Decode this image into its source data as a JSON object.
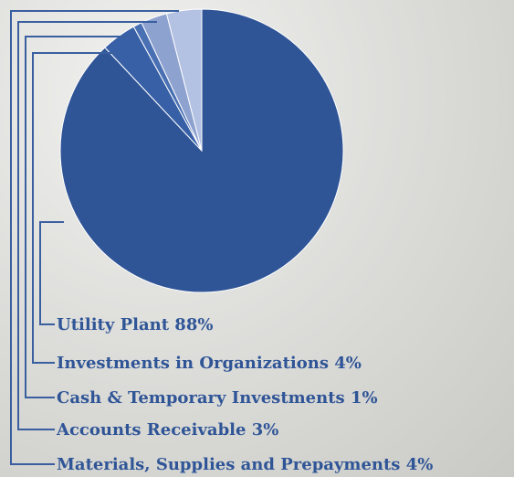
{
  "chart_data": {
    "type": "pie",
    "categories": [
      "Utility Plant",
      "Investments in Organizations",
      "Cash & Temporary Investments",
      "Accounts Receivable",
      "Materials, Supplies and Prepayments"
    ],
    "values": [
      88,
      4,
      1,
      3,
      4
    ],
    "value_labels": [
      "88%",
      "4%",
      "1%",
      "3%",
      "4%"
    ],
    "colors": [
      "#2f5597",
      "#3760a6",
      "#4a70b4",
      "#8ea2d0",
      "#b3c1e2"
    ]
  }
}
